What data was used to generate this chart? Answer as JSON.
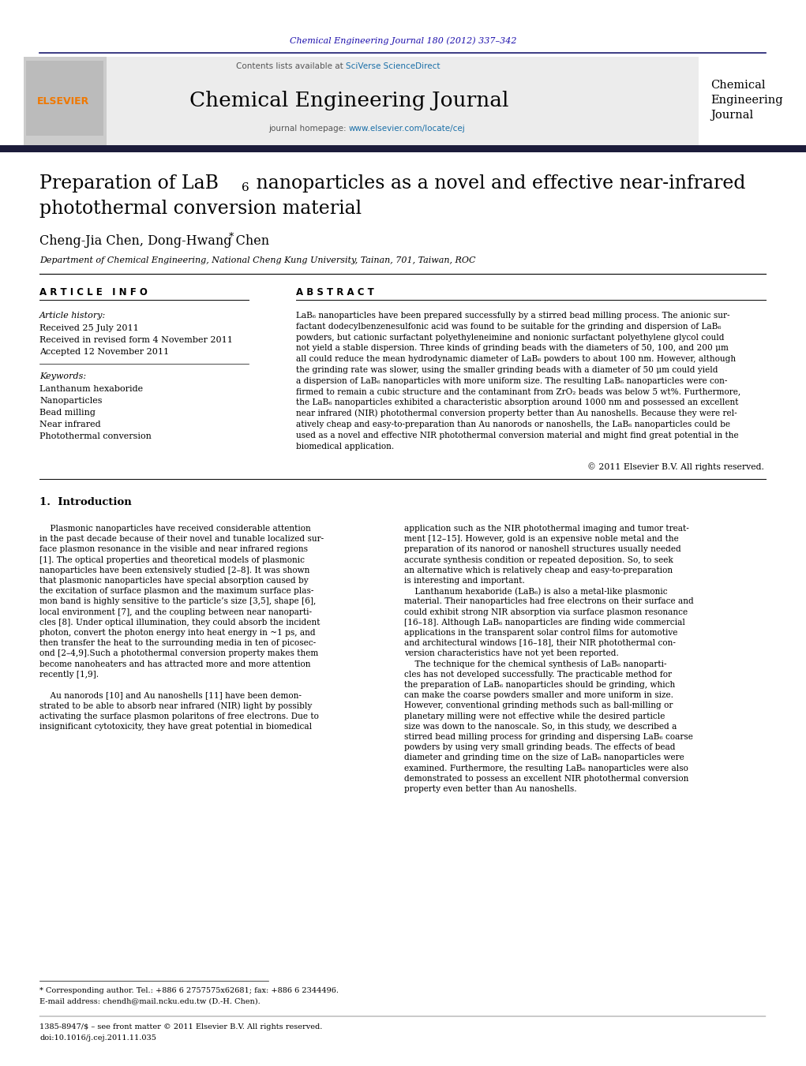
{
  "page_width": 10.21,
  "page_height": 13.51,
  "bg_color": "#ffffff",
  "journal_ref": "Chemical Engineering Journal 180 (2012) 337–342",
  "journal_ref_color": "#1a0dab",
  "contents_text": "Contents lists available at ",
  "sciverse_text": "SciVerse ScienceDirect",
  "sciverse_color": "#1a6fa8",
  "journal_name": "Chemical Engineering Journal",
  "journal_homepage": "journal homepage: ",
  "journal_url": "www.elsevier.com/locate/cej",
  "journal_url_color": "#1a6fa8",
  "sidebar_title_line1": "Chemical",
  "sidebar_title_line2": "Engineering",
  "sidebar_title_line3": "Journal",
  "elsevier_color": "#f07800",
  "header_bg": "#ececec",
  "dark_bar_color": "#1a1a2e",
  "title_line2": "photothermal conversion material",
  "authors": "Cheng-Jia Chen, Dong-Hwang Chen",
  "affiliation": "Department of Chemical Engineering, National Cheng Kung University, Tainan, 701, Taiwan, ROC",
  "article_info_header": "A R T I C L E   I N F O",
  "abstract_header": "A B S T R A C T",
  "article_history_label": "Article history:",
  "received_1": "Received 25 July 2011",
  "received_revised": "Received in revised form 4 November 2011",
  "accepted": "Accepted 12 November 2011",
  "keywords_label": "Keywords:",
  "keywords": [
    "Lanthanum hexaboride",
    "Nanoparticles",
    "Bead milling",
    "Near infrared",
    "Photothermal conversion"
  ],
  "copyright": "© 2011 Elsevier B.V. All rights reserved.",
  "intro_header": "1.  Introduction",
  "footnote_star": "* Corresponding author. Tel.: +886 6 2757575x62681; fax: +886 6 2344496.",
  "footnote_email": "E-mail address: chendh@mail.ncku.edu.tw (D.-H. Chen).",
  "footnote_issn": "1385-8947/$ – see front matter © 2011 Elsevier B.V. All rights reserved.",
  "footnote_doi": "doi:10.1016/j.cej.2011.11.035",
  "link_color": "#1a6fa8",
  "text_color": "#000000",
  "abstract_lines": [
    "LaB₆ nanoparticles have been prepared successfully by a stirred bead milling process. The anionic sur-",
    "factant dodecylbenzenesulfonic acid was found to be suitable for the grinding and dispersion of LaB₆",
    "powders, but cationic surfactant polyethyleneimine and nonionic surfactant polyethylene glycol could",
    "not yield a stable dispersion. Three kinds of grinding beads with the diameters of 50, 100, and 200 μm",
    "all could reduce the mean hydrodynamic diameter of LaB₆ powders to about 100 nm. However, although",
    "the grinding rate was slower, using the smaller grinding beads with a diameter of 50 μm could yield",
    "a dispersion of LaB₆ nanoparticles with more uniform size. The resulting LaB₆ nanoparticles were con-",
    "firmed to remain a cubic structure and the contaminant from ZrO₂ beads was below 5 wt%. Furthermore,",
    "the LaB₆ nanoparticles exhibited a characteristic absorption around 1000 nm and possessed an excellent",
    "near infrared (NIR) photothermal conversion property better than Au nanoshells. Because they were rel-",
    "atively cheap and easy-to-preparation than Au nanorods or nanoshells, the LaB₆ nanoparticles could be",
    "used as a novel and effective NIR photothermal conversion material and might find great potential in the",
    "biomedical application."
  ],
  "intro_left_lines": [
    "    Plasmonic nanoparticles have received considerable attention",
    "in the past decade because of their novel and tunable localized sur-",
    "face plasmon resonance in the visible and near infrared regions",
    "[1]. The optical properties and theoretical models of plasmonic",
    "nanoparticles have been extensively studied [2–8]. It was shown",
    "that plasmonic nanoparticles have special absorption caused by",
    "the excitation of surface plasmon and the maximum surface plas-",
    "mon band is highly sensitive to the particle’s size [3,5], shape [6],",
    "local environment [7], and the coupling between near nanoparti-",
    "cles [8]. Under optical illumination, they could absorb the incident",
    "photon, convert the photon energy into heat energy in ~1 ps, and",
    "then transfer the heat to the surrounding media in ten of picosec-",
    "ond [2–4,9].Such a photothermal conversion property makes them",
    "become nanoheaters and has attracted more and more attention",
    "recently [1,9].",
    "",
    "    Au nanorods [10] and Au nanoshells [11] have been demon-",
    "strated to be able to absorb near infrared (NIR) light by possibly",
    "activating the surface plasmon polaritons of free electrons. Due to",
    "insignificant cytotoxicity, they have great potential in biomedical"
  ],
  "intro_right_lines": [
    "application such as the NIR photothermal imaging and tumor treat-",
    "ment [12–15]. However, gold is an expensive noble metal and the",
    "preparation of its nanorod or nanoshell structures usually needed",
    "accurate synthesis condition or repeated deposition. So, to seek",
    "an alternative which is relatively cheap and easy-to-preparation",
    "is interesting and important.",
    "    Lanthanum hexaboride (LaB₆) is also a metal-like plasmonic",
    "material. Their nanoparticles had free electrons on their surface and",
    "could exhibit strong NIR absorption via surface plasmon resonance",
    "[16–18]. Although LaB₆ nanoparticles are finding wide commercial",
    "applications in the transparent solar control films for automotive",
    "and architectural windows [16–18], their NIR photothermal con-",
    "version characteristics have not yet been reported.",
    "    The technique for the chemical synthesis of LaB₆ nanoparti-",
    "cles has not developed successfully. The practicable method for",
    "the preparation of LaB₆ nanoparticles should be grinding, which",
    "can make the coarse powders smaller and more uniform in size.",
    "However, conventional grinding methods such as ball-milling or",
    "planetary milling were not effective while the desired particle",
    "size was down to the nanoscale. So, in this study, we described a",
    "stirred bead milling process for grinding and dispersing LaB₆ coarse",
    "powders by using very small grinding beads. The effects of bead",
    "diameter and grinding time on the size of LaB₆ nanoparticles were",
    "examined. Furthermore, the resulting LaB₆ nanoparticles were also",
    "demonstrated to possess an excellent NIR photothermal conversion",
    "property even better than Au nanoshells."
  ]
}
